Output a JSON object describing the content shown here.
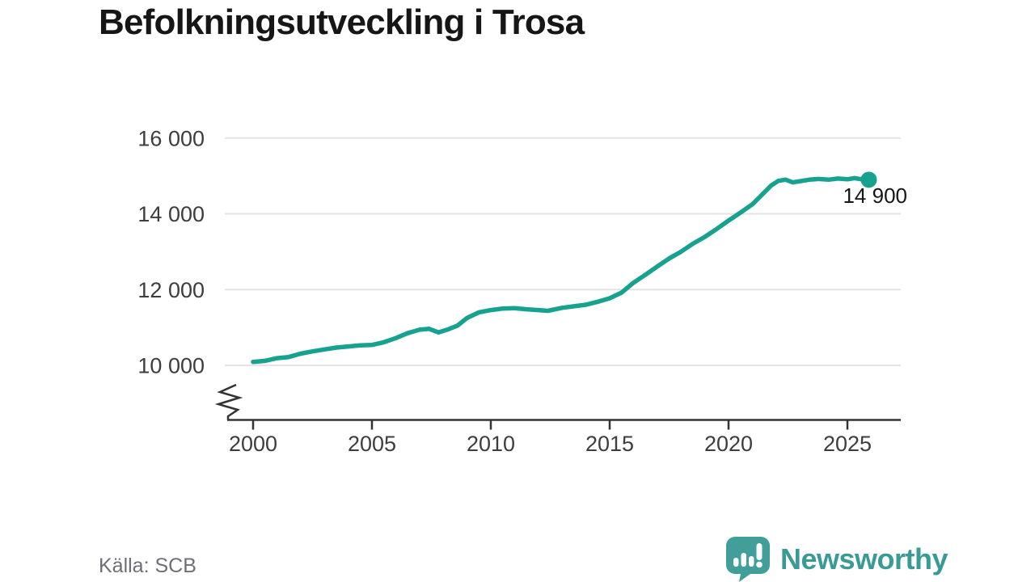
{
  "title": "Befolkningsutveckling i Trosa",
  "source": {
    "text": "Källa: SCB"
  },
  "branding": {
    "logo_text": "Newsworthy",
    "logo_icon": "newsworthy-speech-bubble-bar-chart-icon",
    "logo_color": "#3a9b94"
  },
  "chart_data": {
    "type": "line",
    "title": "Befolkningsutveckling i Trosa",
    "xlabel": "",
    "ylabel": "",
    "grid": "horizontal",
    "axis_break": true,
    "line_color": "#17a28f",
    "end_label": "14 900",
    "x_ticks": [
      {
        "value": 2000,
        "label": "2000"
      },
      {
        "value": 2005,
        "label": "2005"
      },
      {
        "value": 2010,
        "label": "2010"
      },
      {
        "value": 2015,
        "label": "2015"
      },
      {
        "value": 2020,
        "label": "2020"
      },
      {
        "value": 2025,
        "label": "2025"
      }
    ],
    "y_ticks": [
      {
        "value": 16000,
        "label": "16 000"
      },
      {
        "value": 14000,
        "label": "14 000"
      },
      {
        "value": 12000,
        "label": "12 000"
      },
      {
        "value": 10000,
        "label": "10 000"
      }
    ],
    "xlim": [
      1998.8,
      2027.2
    ],
    "ylim_visible": [
      10000,
      16000
    ],
    "series": [
      {
        "color": "#17a28f",
        "points": [
          [
            2000,
            10090
          ],
          [
            2000.5,
            10120
          ],
          [
            2001,
            10190
          ],
          [
            2001.5,
            10220
          ],
          [
            2002,
            10310
          ],
          [
            2002.5,
            10370
          ],
          [
            2003,
            10420
          ],
          [
            2003.5,
            10470
          ],
          [
            2004,
            10500
          ],
          [
            2004.5,
            10530
          ],
          [
            2005,
            10540
          ],
          [
            2005.5,
            10610
          ],
          [
            2006,
            10720
          ],
          [
            2006.5,
            10850
          ],
          [
            2007,
            10940
          ],
          [
            2007.4,
            10965
          ],
          [
            2007.8,
            10870
          ],
          [
            2008.2,
            10950
          ],
          [
            2008.6,
            11050
          ],
          [
            2009,
            11250
          ],
          [
            2009.5,
            11400
          ],
          [
            2010,
            11460
          ],
          [
            2010.5,
            11500
          ],
          [
            2011,
            11510
          ],
          [
            2011.5,
            11480
          ],
          [
            2012,
            11460
          ],
          [
            2012.4,
            11440
          ],
          [
            2013,
            11520
          ],
          [
            2013.5,
            11560
          ],
          [
            2014,
            11600
          ],
          [
            2014.5,
            11680
          ],
          [
            2015,
            11770
          ],
          [
            2015.5,
            11920
          ],
          [
            2016,
            12180
          ],
          [
            2016.5,
            12390
          ],
          [
            2017,
            12610
          ],
          [
            2017.5,
            12820
          ],
          [
            2018,
            13000
          ],
          [
            2018.5,
            13210
          ],
          [
            2019,
            13390
          ],
          [
            2019.5,
            13600
          ],
          [
            2020,
            13820
          ],
          [
            2020.5,
            14030
          ],
          [
            2021,
            14250
          ],
          [
            2021.4,
            14500
          ],
          [
            2021.8,
            14750
          ],
          [
            2022.1,
            14870
          ],
          [
            2022.4,
            14900
          ],
          [
            2022.7,
            14830
          ],
          [
            2023,
            14860
          ],
          [
            2023.4,
            14900
          ],
          [
            2023.8,
            14920
          ],
          [
            2024.2,
            14900
          ],
          [
            2024.6,
            14930
          ],
          [
            2025,
            14910
          ],
          [
            2025.3,
            14940
          ],
          [
            2025.6,
            14910
          ],
          [
            2025.9,
            14900
          ]
        ]
      }
    ]
  }
}
